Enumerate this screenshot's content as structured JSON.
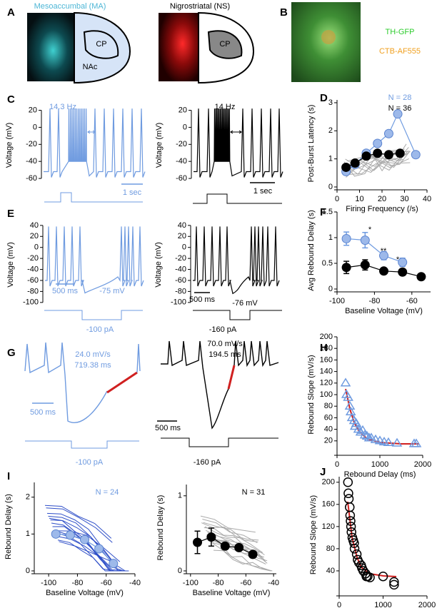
{
  "panel_labels": [
    "A",
    "B",
    "C",
    "D",
    "E",
    "F",
    "G",
    "H",
    "I",
    "J"
  ],
  "panel_a": {
    "titles": [
      "Mesoaccumbal (MA)",
      "Nigrostriatal (NS)"
    ],
    "regions": [
      "CP",
      "NAc",
      "CP"
    ]
  },
  "panel_b": {
    "labels": [
      "TH-GFP",
      "CTB-AF555"
    ]
  },
  "traces": [
    {
      "ylabel": "Voltage (mV)",
      "ylim": [
        -70,
        28
      ],
      "yticks": [
        20,
        0,
        -20,
        -40,
        -60
      ],
      "labels": [
        "14.3 Hz",
        "1 sec"
      ],
      "color": "#6f9be0"
    },
    {
      "ylabel": "Voltage (mV)",
      "ylim": [
        -70,
        28
      ],
      "yticks": [
        20,
        0,
        -20,
        -40,
        -60
      ],
      "labels": [
        "14 Hz",
        "1 sec"
      ],
      "color": "#000000"
    },
    {
      "ylabel": "Voltage (mV)",
      "ylim": [
        -108,
        45
      ],
      "yticks": [
        40,
        20,
        0,
        -20,
        -40,
        -60,
        -80,
        -100
      ],
      "labels": [
        "500 ms",
        "-75 mV",
        "-100 pA"
      ],
      "color": "#6f9be0"
    },
    {
      "ylabel": "Voltage (mV)",
      "ylim": [
        -108,
        45
      ],
      "yticks": [
        40,
        20,
        0,
        -20,
        -40,
        -60,
        -80,
        -100
      ],
      "labels": [
        "500 ms",
        "-76 mV",
        "-160 pA"
      ],
      "color": "#000000"
    },
    {
      "labels": [
        "24.0 mV/s",
        "719.38 ms",
        "500 ms",
        "-100 pA"
      ],
      "color": "#6f9be0"
    },
    {
      "labels": [
        "70.0 mV/s",
        "194.5 ms",
        "500 ms",
        "-160 pA"
      ],
      "color": "#000000"
    }
  ],
  "chart_data": [
    {
      "type": "scatter",
      "xlabel": "Firing Frequency (/s)",
      "ylabel": "Post-Burst Latency (s)",
      "xlim": [
        0,
        40
      ],
      "xticks": [
        0,
        10,
        20,
        30,
        40
      ],
      "ylim": [
        0,
        3.1
      ],
      "yticks": [
        0,
        1,
        2,
        3
      ],
      "annotations": [
        {
          "text": "N = 28",
          "color": "#6f9be0"
        },
        {
          "text": "N = 36",
          "color": "#000000"
        }
      ],
      "series": [
        {
          "color": "#6f9be0",
          "marker": "circle",
          "line": true,
          "x": [
            4,
            8,
            13,
            18,
            23,
            27,
            35
          ],
          "values": [
            0.55,
            0.8,
            1.2,
            1.55,
            1.9,
            2.6,
            1.15
          ]
        },
        {
          "color": "#000000",
          "marker": "circle",
          "line": true,
          "x": [
            4,
            8,
            13,
            18,
            23,
            28
          ],
          "values": [
            0.7,
            0.85,
            1.1,
            1.2,
            1.15,
            1.2
          ]
        }
      ]
    },
    {
      "type": "scatter",
      "xlabel": "Baseline Voltage (mV)",
      "ylabel": "Avg Rebound Delay (s)",
      "xlim": [
        -100,
        -50
      ],
      "xticks": [
        -100,
        -80,
        -60
      ],
      "ylim": [
        0,
        1.5
      ],
      "yticks": [
        0,
        0.5,
        1,
        1.5
      ],
      "annotations": [
        {
          "text": "*"
        },
        {
          "text": "**"
        },
        {
          "text": "*"
        }
      ],
      "series": [
        {
          "color": "#6f9be0",
          "marker": "circle",
          "line": true,
          "x": [
            -95,
            -85,
            -75,
            -65
          ],
          "values": [
            0.98,
            0.95,
            0.65,
            0.52
          ],
          "errors": [
            0.13,
            0.15,
            0.08,
            0.08
          ]
        },
        {
          "color": "#000000",
          "marker": "circle",
          "line": true,
          "x": [
            -95,
            -85,
            -75,
            -65,
            -55
          ],
          "values": [
            0.42,
            0.47,
            0.35,
            0.33,
            0.24
          ],
          "errors": [
            0.12,
            0.1,
            0.05,
            0.05,
            0.04
          ]
        }
      ]
    },
    {
      "type": "scatter",
      "xlabel": "Rebound Delay (ms)",
      "ylabel": "Rebound Slope (mV/s)",
      "xlim": [
        0,
        2000
      ],
      "xticks": [
        0,
        1000,
        2000
      ],
      "ylim": [
        0,
        200
      ],
      "yticks": [
        20,
        40,
        60,
        80,
        100,
        120,
        140,
        160,
        180,
        200
      ],
      "series": [
        {
          "color": "#6f9be0",
          "marker": "triangle",
          "x": [
            200,
            220,
            260,
            300,
            320,
            350,
            400,
            420,
            450,
            500,
            550,
            600,
            650,
            700,
            750,
            800,
            900,
            1000,
            1100,
            1200,
            1400,
            1800,
            1850
          ],
          "values": [
            120,
            100,
            95,
            80,
            70,
            60,
            55,
            45,
            50,
            40,
            35,
            38,
            30,
            28,
            25,
            25,
            22,
            20,
            18,
            17,
            16,
            15,
            15
          ]
        }
      ]
    },
    {
      "type": "scatter",
      "xlabel": "Baseline Voltage (mV)",
      "ylabel": "Rebound Delay (s)",
      "xlim": [
        -110,
        -40
      ],
      "xticks": [
        -100,
        -80,
        -60,
        -40
      ],
      "ylim": [
        0,
        2.4
      ],
      "yticks": [
        0,
        1,
        2
      ],
      "annotations": [
        {
          "text": "N = 24",
          "color": "#6f9be0"
        }
      ],
      "series": [
        {
          "color": "#6f9be0",
          "marker": "circle",
          "line": true,
          "x": [
            -95,
            -85,
            -75,
            -65,
            -55
          ],
          "values": [
            1.0,
            0.97,
            0.85,
            0.6,
            0.2
          ]
        }
      ]
    },
    {
      "type": "scatter",
      "xlabel": "Baseline Voltage (mV)",
      "ylabel": "Rebound Delay (s)",
      "xlim": [
        -103,
        -38
      ],
      "xticks": [
        -100,
        -80,
        -60,
        -40
      ],
      "ylim": [
        0,
        1.15
      ],
      "yticks": [
        0,
        1
      ],
      "annotations": [
        {
          "text": "N = 31",
          "color": "#000000"
        }
      ],
      "series": [
        {
          "color": "#000000",
          "marker": "circle",
          "line": true,
          "x": [
            -95,
            -85,
            -75,
            -65,
            -55
          ],
          "values": [
            0.38,
            0.45,
            0.33,
            0.31,
            0.22
          ],
          "errors": [
            0.15,
            0.12,
            0.04,
            0.04,
            0.04
          ]
        }
      ]
    },
    {
      "type": "scatter",
      "xlabel": "Rebound Delay (ms)",
      "ylabel": "Rebound Slope (mV/s)",
      "xlim": [
        0,
        2000
      ],
      "xticks": [
        0,
        1000,
        2000
      ],
      "ylim": [
        0,
        210
      ],
      "yticks": [
        40,
        80,
        120,
        160,
        200
      ],
      "series": [
        {
          "color": "#000000",
          "marker": "circle-open",
          "x": [
            200,
            210,
            220,
            240,
            250,
            260,
            270,
            280,
            300,
            320,
            340,
            350,
            400,
            420,
            450,
            500,
            520,
            550,
            600,
            620,
            650,
            700,
            1000,
            1250,
            1250
          ],
          "values": [
            200,
            180,
            170,
            155,
            140,
            130,
            120,
            110,
            100,
            95,
            90,
            80,
            70,
            60,
            55,
            50,
            45,
            40,
            35,
            30,
            30,
            28,
            30,
            20,
            15
          ]
        }
      ]
    }
  ]
}
